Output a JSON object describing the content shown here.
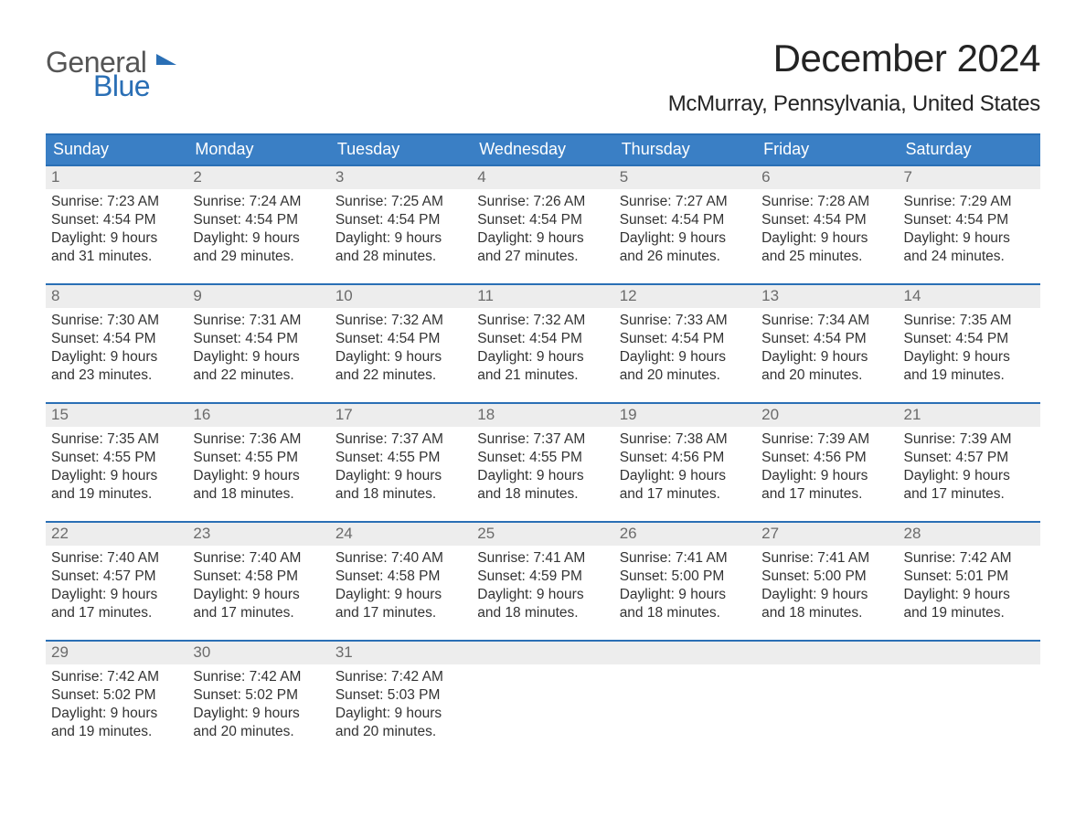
{
  "logo": {
    "part1": "General",
    "part2": "Blue"
  },
  "title": "December 2024",
  "location": "McMurray, Pennsylvania, United States",
  "colors": {
    "header_bg": "#3a7fc5",
    "border": "#2a6fb5",
    "daynum_bg": "#ededed",
    "text": "#333333",
    "logo_gray": "#555555",
    "logo_blue": "#2a6fb5"
  },
  "day_headers": [
    "Sunday",
    "Monday",
    "Tuesday",
    "Wednesday",
    "Thursday",
    "Friday",
    "Saturday"
  ],
  "weeks": [
    [
      {
        "n": "1",
        "sr": "7:23 AM",
        "ss": "4:54 PM",
        "d1": "Daylight: 9 hours",
        "d2": "and 31 minutes."
      },
      {
        "n": "2",
        "sr": "7:24 AM",
        "ss": "4:54 PM",
        "d1": "Daylight: 9 hours",
        "d2": "and 29 minutes."
      },
      {
        "n": "3",
        "sr": "7:25 AM",
        "ss": "4:54 PM",
        "d1": "Daylight: 9 hours",
        "d2": "and 28 minutes."
      },
      {
        "n": "4",
        "sr": "7:26 AM",
        "ss": "4:54 PM",
        "d1": "Daylight: 9 hours",
        "d2": "and 27 minutes."
      },
      {
        "n": "5",
        "sr": "7:27 AM",
        "ss": "4:54 PM",
        "d1": "Daylight: 9 hours",
        "d2": "and 26 minutes."
      },
      {
        "n": "6",
        "sr": "7:28 AM",
        "ss": "4:54 PM",
        "d1": "Daylight: 9 hours",
        "d2": "and 25 minutes."
      },
      {
        "n": "7",
        "sr": "7:29 AM",
        "ss": "4:54 PM",
        "d1": "Daylight: 9 hours",
        "d2": "and 24 minutes."
      }
    ],
    [
      {
        "n": "8",
        "sr": "7:30 AM",
        "ss": "4:54 PM",
        "d1": "Daylight: 9 hours",
        "d2": "and 23 minutes."
      },
      {
        "n": "9",
        "sr": "7:31 AM",
        "ss": "4:54 PM",
        "d1": "Daylight: 9 hours",
        "d2": "and 22 minutes."
      },
      {
        "n": "10",
        "sr": "7:32 AM",
        "ss": "4:54 PM",
        "d1": "Daylight: 9 hours",
        "d2": "and 22 minutes."
      },
      {
        "n": "11",
        "sr": "7:32 AM",
        "ss": "4:54 PM",
        "d1": "Daylight: 9 hours",
        "d2": "and 21 minutes."
      },
      {
        "n": "12",
        "sr": "7:33 AM",
        "ss": "4:54 PM",
        "d1": "Daylight: 9 hours",
        "d2": "and 20 minutes."
      },
      {
        "n": "13",
        "sr": "7:34 AM",
        "ss": "4:54 PM",
        "d1": "Daylight: 9 hours",
        "d2": "and 20 minutes."
      },
      {
        "n": "14",
        "sr": "7:35 AM",
        "ss": "4:54 PM",
        "d1": "Daylight: 9 hours",
        "d2": "and 19 minutes."
      }
    ],
    [
      {
        "n": "15",
        "sr": "7:35 AM",
        "ss": "4:55 PM",
        "d1": "Daylight: 9 hours",
        "d2": "and 19 minutes."
      },
      {
        "n": "16",
        "sr": "7:36 AM",
        "ss": "4:55 PM",
        "d1": "Daylight: 9 hours",
        "d2": "and 18 minutes."
      },
      {
        "n": "17",
        "sr": "7:37 AM",
        "ss": "4:55 PM",
        "d1": "Daylight: 9 hours",
        "d2": "and 18 minutes."
      },
      {
        "n": "18",
        "sr": "7:37 AM",
        "ss": "4:55 PM",
        "d1": "Daylight: 9 hours",
        "d2": "and 18 minutes."
      },
      {
        "n": "19",
        "sr": "7:38 AM",
        "ss": "4:56 PM",
        "d1": "Daylight: 9 hours",
        "d2": "and 17 minutes."
      },
      {
        "n": "20",
        "sr": "7:39 AM",
        "ss": "4:56 PM",
        "d1": "Daylight: 9 hours",
        "d2": "and 17 minutes."
      },
      {
        "n": "21",
        "sr": "7:39 AM",
        "ss": "4:57 PM",
        "d1": "Daylight: 9 hours",
        "d2": "and 17 minutes."
      }
    ],
    [
      {
        "n": "22",
        "sr": "7:40 AM",
        "ss": "4:57 PM",
        "d1": "Daylight: 9 hours",
        "d2": "and 17 minutes."
      },
      {
        "n": "23",
        "sr": "7:40 AM",
        "ss": "4:58 PM",
        "d1": "Daylight: 9 hours",
        "d2": "and 17 minutes."
      },
      {
        "n": "24",
        "sr": "7:40 AM",
        "ss": "4:58 PM",
        "d1": "Daylight: 9 hours",
        "d2": "and 17 minutes."
      },
      {
        "n": "25",
        "sr": "7:41 AM",
        "ss": "4:59 PM",
        "d1": "Daylight: 9 hours",
        "d2": "and 18 minutes."
      },
      {
        "n": "26",
        "sr": "7:41 AM",
        "ss": "5:00 PM",
        "d1": "Daylight: 9 hours",
        "d2": "and 18 minutes."
      },
      {
        "n": "27",
        "sr": "7:41 AM",
        "ss": "5:00 PM",
        "d1": "Daylight: 9 hours",
        "d2": "and 18 minutes."
      },
      {
        "n": "28",
        "sr": "7:42 AM",
        "ss": "5:01 PM",
        "d1": "Daylight: 9 hours",
        "d2": "and 19 minutes."
      }
    ],
    [
      {
        "n": "29",
        "sr": "7:42 AM",
        "ss": "5:02 PM",
        "d1": "Daylight: 9 hours",
        "d2": "and 19 minutes."
      },
      {
        "n": "30",
        "sr": "7:42 AM",
        "ss": "5:02 PM",
        "d1": "Daylight: 9 hours",
        "d2": "and 20 minutes."
      },
      {
        "n": "31",
        "sr": "7:42 AM",
        "ss": "5:03 PM",
        "d1": "Daylight: 9 hours",
        "d2": "and 20 minutes."
      },
      {
        "empty": true
      },
      {
        "empty": true
      },
      {
        "empty": true
      },
      {
        "empty": true
      }
    ]
  ],
  "labels": {
    "sunrise_prefix": "Sunrise: ",
    "sunset_prefix": "Sunset: "
  }
}
